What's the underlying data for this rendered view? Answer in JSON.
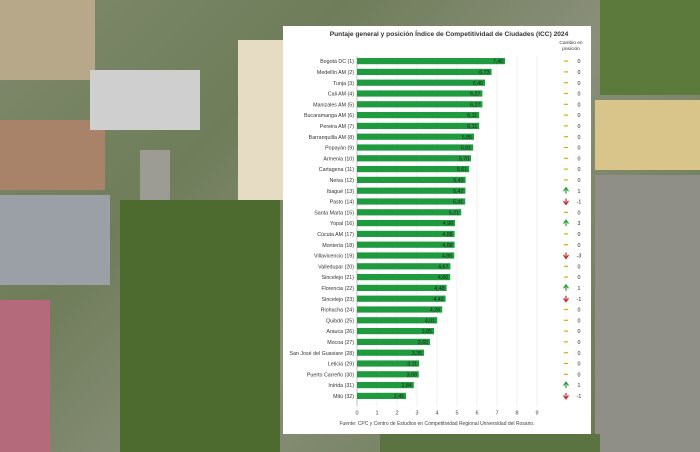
{
  "chart_data": {
    "type": "bar",
    "title": "Puntaje general y posición Índice de Competitividad de Ciudades (ICC) 2024",
    "change_header": "Cambio en posición",
    "categories": [
      "Bogotá DC (1)",
      "Medellín AM (2)",
      "Tunja (3)",
      "Cali AM (4)",
      "Manizales AM (5)",
      "Bucaramanga AM (6)",
      "Pereira AM (7)",
      "Barranquilla AM (8)",
      "Popayán (9)",
      "Armenia (10)",
      "Cartagena (11)",
      "Neiva (12)",
      "Ibagué (13)",
      "Pasto (14)",
      "Santa Marta (15)",
      "Yopal (16)",
      "Cúcuta AM (17)",
      "Montería (18)",
      "Villavicencio (19)",
      "Valledupar (20)",
      "Sincelejo (21)",
      "Florencia (22)",
      "Sincelejo (23)",
      "Riohacha (24)",
      "Quibdó (25)",
      "Arauca (26)",
      "Mocoa (27)",
      "San José del Guaviare (28)",
      "Leticia (29)",
      "Puerto Carreño (30)",
      "Inírida (31)",
      "Mitú (32)"
    ],
    "values": [
      7.4,
      6.73,
      6.4,
      6.27,
      6.27,
      6.11,
      6.11,
      5.85,
      5.81,
      5.7,
      5.61,
      5.43,
      5.42,
      5.41,
      5.21,
      4.9,
      4.88,
      4.88,
      4.86,
      4.67,
      4.66,
      4.48,
      4.43,
      4.26,
      4.01,
      3.85,
      3.65,
      3.35,
      3.11,
      3.09,
      2.84,
      2.45
    ],
    "value_labels": [
      "7,40",
      "6,73",
      "6,40",
      "6,27",
      "6,27",
      "6,11",
      "6,11",
      "5,85",
      "5,81",
      "5,70",
      "5,61",
      "5,43",
      "5,42",
      "5,41",
      "5,21",
      "4,90",
      "4,88",
      "4,88",
      "4,86",
      "4,67",
      "4,66",
      "4,48",
      "4,43",
      "4,26",
      "4,01",
      "3,85",
      "3,65",
      "3,35",
      "3,11",
      "3,09",
      "2,84",
      "2,45"
    ],
    "position_change": [
      "0",
      "0",
      "0",
      "0",
      "0",
      "0",
      "0",
      "0",
      "0",
      "0",
      "0",
      "0",
      "1",
      "-1",
      "0",
      "3",
      "0",
      "0",
      "-3",
      "0",
      "0",
      "1",
      "-1",
      "0",
      "0",
      "0",
      "0",
      "0",
      "0",
      "0",
      "1",
      "-1"
    ],
    "change_direction": [
      "none",
      "none",
      "none",
      "none",
      "none",
      "none",
      "none",
      "none",
      "none",
      "none",
      "none",
      "none",
      "up",
      "down",
      "none",
      "up",
      "none",
      "none",
      "down",
      "none",
      "none",
      "up",
      "down",
      "none",
      "none",
      "none",
      "none",
      "none",
      "none",
      "none",
      "up",
      "down"
    ],
    "x_ticks": [
      "0",
      "1",
      "2",
      "3",
      "4",
      "5",
      "6",
      "7",
      "8",
      "9"
    ],
    "xlim": [
      0,
      9
    ],
    "bar_color": "#1f9a3e",
    "up_color": "#27a038",
    "down_color": "#c62828",
    "zero_color": "#e0a800",
    "source": "Fuente: CPC y Centro de Estudios en Competitividad Regional Universidad del Rosario."
  }
}
